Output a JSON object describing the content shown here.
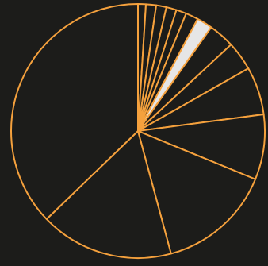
{
  "chart_data": {
    "type": "pie",
    "title": "",
    "start_angle": "top",
    "direction": "clockwise",
    "legend": "none",
    "values": [
      1.0,
      1.3,
      1.3,
      1.3,
      1.3,
      1.6,
      2.0,
      3.3,
      3.7,
      6.1,
      8.3,
      14.6,
      17.0,
      37.2
    ],
    "highlight_index": 6,
    "colors": {
      "background": "#1c1c1a",
      "slice_fill": "#1c1c1a",
      "stroke": "#f5a13d",
      "highlight_fill": "#e6e6e6"
    }
  }
}
